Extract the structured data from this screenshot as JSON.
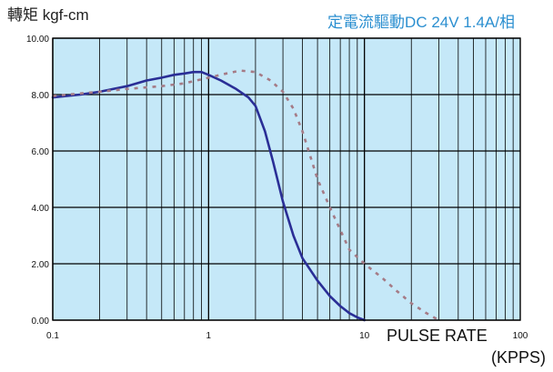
{
  "chart_data": {
    "type": "line",
    "title": "定電流驅動DC 24V 1.4A/相",
    "ylabel": "轉矩 kgf-cm",
    "xlabel_line1": "PULSE RATE",
    "xlabel_line2": "(KPPS)",
    "x_scale": "log",
    "xlim": [
      0.1,
      100
    ],
    "ylim": [
      0,
      10
    ],
    "x_ticks": [
      0.1,
      1,
      10,
      100
    ],
    "x_tick_labels": [
      "0.1",
      "1",
      "10",
      "100"
    ],
    "y_ticks": [
      0,
      2,
      4,
      6,
      8,
      10
    ],
    "y_tick_labels": [
      "0.00",
      "2.00",
      "4.00",
      "6.00",
      "8.00",
      "10.00"
    ],
    "grid": true,
    "series": [
      {
        "style": "solid",
        "color": "#2a2e96",
        "x": [
          0.1,
          0.15,
          0.2,
          0.3,
          0.4,
          0.5,
          0.6,
          0.7,
          0.8,
          0.9,
          1.0,
          1.2,
          1.5,
          1.8,
          2.0,
          2.3,
          2.6,
          3.0,
          3.5,
          4.0,
          5.0,
          6.0,
          7.0,
          8.0,
          9.0,
          10.0
        ],
        "y": [
          7.9,
          8.0,
          8.1,
          8.3,
          8.5,
          8.6,
          8.7,
          8.75,
          8.8,
          8.8,
          8.7,
          8.5,
          8.2,
          7.9,
          7.6,
          6.7,
          5.6,
          4.2,
          3.0,
          2.2,
          1.4,
          0.85,
          0.5,
          0.25,
          0.1,
          0.0
        ]
      },
      {
        "style": "dashed",
        "color": "#a57b86",
        "x": [
          0.1,
          0.2,
          0.3,
          0.5,
          0.7,
          1.0,
          1.3,
          1.6,
          2.0,
          2.5,
          3.0,
          3.5,
          4.0,
          4.5,
          5.0,
          6.0,
          7.0,
          8.0,
          10.0,
          13.0,
          16.0,
          20.0,
          25.0,
          30.0
        ],
        "y": [
          7.95,
          8.1,
          8.2,
          8.3,
          8.4,
          8.6,
          8.75,
          8.85,
          8.8,
          8.5,
          8.1,
          7.5,
          6.7,
          5.8,
          5.0,
          4.0,
          3.2,
          2.5,
          2.0,
          1.5,
          1.05,
          0.6,
          0.25,
          0.0
        ]
      }
    ]
  },
  "colors": {
    "plot_background": "#c5e8f8",
    "grid_line": "#000000",
    "title": "#2b8fd0"
  }
}
